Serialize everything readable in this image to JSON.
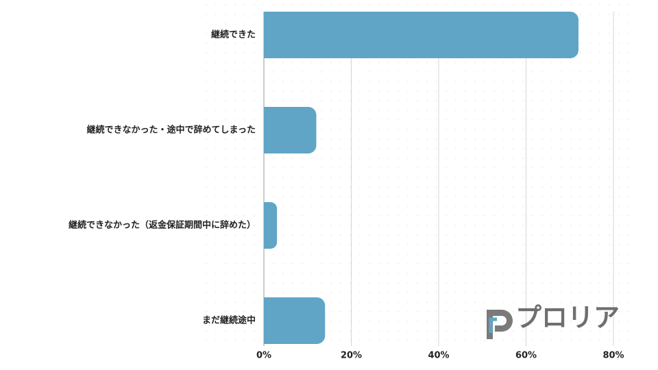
{
  "chart_data": {
    "type": "bar",
    "orientation": "horizontal",
    "categories": [
      "継続できた",
      "継続できなかった・途中で辞めてしまった",
      "継続できなかった（返金保証期間中に辞めた）",
      "まだ継続途中"
    ],
    "values": [
      72,
      12,
      3,
      14
    ],
    "color": "#60a5c5",
    "xlim": [
      0,
      80
    ],
    "xticks": [
      {
        "value": 0,
        "label": "0%"
      },
      {
        "value": 20,
        "label": "20%"
      },
      {
        "value": 40,
        "label": "40%"
      },
      {
        "value": 60,
        "label": "60%"
      },
      {
        "value": 80,
        "label": "80%"
      }
    ],
    "grid": true,
    "watermark": "プロリア"
  }
}
